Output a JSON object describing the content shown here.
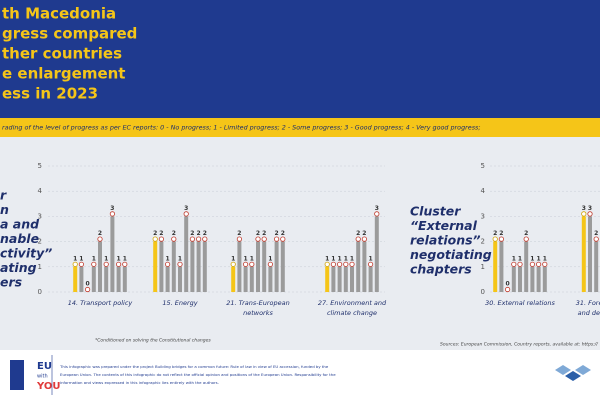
{
  "header": {
    "lines": [
      "th Macedonia",
      "gress compared",
      "ther countries",
      "e enlargement",
      "ess in 2023"
    ]
  },
  "grading": "rading of the level of progress as per EC reports:  0 - No progress;  1 - Limited progress;  2 - Some progress;  3 - Good progress;  4 - Very good progress;",
  "left_cluster": {
    "lines": [
      "r",
      "n",
      "a and",
      "nable",
      "ctivity”",
      "ating",
      "ers"
    ]
  },
  "right_cluster": {
    "lines": [
      "Cluster",
      "“External",
      "relations”",
      "negotiating",
      "chapters"
    ]
  },
  "note": "*Conditioned on solving the Constitutional changes",
  "sources": "Sources: European Commission, Country reports, available at: https://",
  "footer": {
    "logo": [
      "EU",
      "with",
      "YOU"
    ],
    "lines": [
      "This infographic was prepared under the project Building bridges for a common future: Rule of law in view of EU accession, funded by the",
      "European Union. The contents of this infographic do not reflect the official opinion and positions of the European Union. Responsibility for the",
      "information and views expressed in this infographic lies entirely with the authors."
    ]
  },
  "chart_data": [
    {
      "type": "bar",
      "ylim": [
        0,
        5
      ],
      "yticks": [
        0,
        1,
        2,
        3,
        4,
        5
      ],
      "grid": true,
      "colors": [
        "#f5c518",
        "#9b9b9b",
        "#9b9b9b",
        "#9b9b9b",
        "#9b9b9b",
        "#9b9b9b",
        "#9b9b9b",
        "#9b9b9b",
        "#9b9b9b"
      ],
      "groups": [
        {
          "title": [
            "14. Transport policy"
          ],
          "values": [
            1,
            1,
            0,
            1,
            2,
            1,
            3,
            1,
            1
          ]
        },
        {
          "title": [
            "15. Energy"
          ],
          "values": [
            2,
            2,
            1,
            2,
            1,
            3,
            2,
            2,
            2
          ]
        },
        {
          "title": [
            "21. Trans-European",
            "networks"
          ],
          "values": [
            1,
            2,
            1,
            1,
            2,
            2,
            1,
            2,
            2
          ]
        },
        {
          "title": [
            "27. Environment and",
            "climate change"
          ],
          "values": [
            1,
            1,
            1,
            1,
            1,
            2,
            2,
            1,
            3
          ]
        }
      ]
    },
    {
      "type": "bar",
      "ylim": [
        0,
        5
      ],
      "yticks": [
        0,
        1,
        2,
        3,
        4,
        5
      ],
      "grid": true,
      "colors": [
        "#f5c518",
        "#9b9b9b",
        "#9b9b9b",
        "#9b9b9b",
        "#9b9b9b",
        "#9b9b9b",
        "#9b9b9b",
        "#9b9b9b",
        "#9b9b9b"
      ],
      "groups": [
        {
          "title": [
            "30. External relations"
          ],
          "values": [
            2,
            2,
            0,
            1,
            1,
            2,
            1,
            1,
            1
          ]
        },
        {
          "title": [
            "31. Forei",
            "and def"
          ],
          "values": [
            3,
            3,
            2
          ]
        }
      ]
    }
  ]
}
